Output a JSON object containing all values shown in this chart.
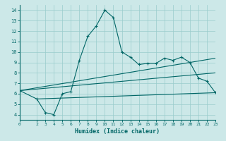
{
  "xlabel": "Humidex (Indice chaleur)",
  "bg_color": "#cce8e8",
  "line_color": "#006666",
  "grid_color": "#99cccc",
  "xlim": [
    0,
    23
  ],
  "ylim": [
    3.5,
    14.5
  ],
  "xticks": [
    0,
    2,
    3,
    4,
    5,
    6,
    7,
    8,
    9,
    10,
    11,
    12,
    13,
    14,
    15,
    16,
    17,
    18,
    19,
    20,
    21,
    22,
    23
  ],
  "yticks": [
    4,
    5,
    6,
    7,
    8,
    9,
    10,
    11,
    12,
    13,
    14
  ],
  "line1_x": [
    0,
    2,
    3,
    4,
    5,
    6,
    7,
    8,
    9,
    10,
    11,
    12,
    13,
    14,
    15,
    16,
    17,
    18,
    19,
    20,
    21,
    22,
    23
  ],
  "line1_y": [
    6.3,
    5.5,
    4.2,
    4.0,
    6.0,
    6.2,
    9.2,
    11.5,
    12.5,
    14.0,
    13.3,
    10.0,
    9.5,
    8.8,
    8.9,
    8.9,
    9.4,
    9.2,
    9.5,
    9.0,
    7.5,
    7.2,
    6.1
  ],
  "line2_x": [
    0,
    23
  ],
  "line2_y": [
    6.3,
    9.4
  ],
  "line3_x": [
    0,
    23
  ],
  "line3_y": [
    6.3,
    8.0
  ],
  "line4_x": [
    2,
    23
  ],
  "line4_y": [
    5.5,
    6.1
  ]
}
